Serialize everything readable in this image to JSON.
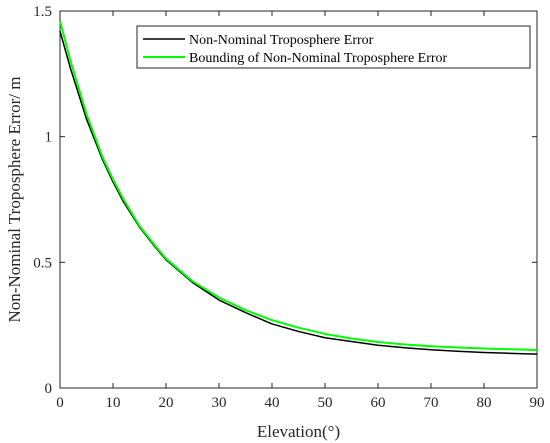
{
  "chart_data": {
    "type": "line",
    "title": "",
    "xlabel": "Elevation(°)",
    "ylabel": "Non-Nominal Troposphere Error/ m",
    "xlim": [
      0,
      90
    ],
    "ylim": [
      0,
      1.5
    ],
    "xticks": [
      0,
      10,
      20,
      30,
      40,
      50,
      60,
      70,
      80,
      90
    ],
    "yticks": [
      0,
      0.5,
      1,
      1.5
    ],
    "xtick_labels": [
      "0",
      "10",
      "20",
      "30",
      "40",
      "50",
      "60",
      "70",
      "80",
      "90"
    ],
    "ytick_labels": [
      "0",
      "0.5",
      "1",
      "1.5"
    ],
    "grid": false,
    "legend_position": "top-right",
    "series": [
      {
        "name": "Non-Nominal Troposphere Error",
        "color": "#000000",
        "x": [
          0,
          2,
          5,
          8,
          10,
          12,
          15,
          18,
          20,
          25,
          30,
          35,
          40,
          45,
          50,
          55,
          60,
          65,
          70,
          75,
          80,
          85,
          90
        ],
        "y": [
          1.42,
          1.27,
          1.07,
          0.91,
          0.82,
          0.74,
          0.64,
          0.56,
          0.51,
          0.42,
          0.35,
          0.3,
          0.255,
          0.225,
          0.2,
          0.185,
          0.17,
          0.16,
          0.152,
          0.146,
          0.141,
          0.138,
          0.135
        ]
      },
      {
        "name": "Bounding of Non-Nominal Troposphere Error",
        "color": "#00ff00",
        "x": [
          0,
          2,
          5,
          8,
          10,
          12,
          15,
          18,
          20,
          25,
          30,
          35,
          40,
          45,
          50,
          55,
          60,
          65,
          70,
          75,
          80,
          85,
          90
        ],
        "y": [
          1.46,
          1.3,
          1.09,
          0.92,
          0.83,
          0.75,
          0.645,
          0.565,
          0.515,
          0.425,
          0.36,
          0.31,
          0.27,
          0.24,
          0.215,
          0.197,
          0.183,
          0.173,
          0.166,
          0.161,
          0.157,
          0.154,
          0.151
        ]
      }
    ]
  }
}
